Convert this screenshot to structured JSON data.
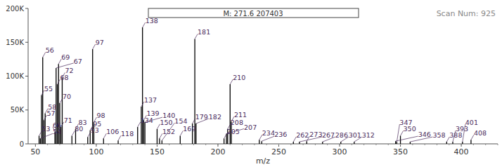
{
  "chart_data": {
    "type": "bar",
    "x_label": "m/z",
    "annotations": [
      "M: 271.6 207403",
      "Scan Num: 925"
    ],
    "x": [
      53,
      54,
      55,
      56,
      57,
      58,
      66,
      67,
      68,
      69,
      70,
      71,
      72,
      80,
      83,
      93,
      95,
      97,
      98,
      106,
      118,
      134,
      137,
      138,
      139,
      140,
      150,
      152,
      154,
      169,
      179,
      181,
      182,
      205,
      207,
      208,
      210,
      211,
      234,
      236,
      262,
      267,
      273,
      286,
      301,
      312,
      346,
      347,
      350,
      358,
      388,
      393,
      401,
      408
    ],
    "values": [
      12000,
      8000,
      72000,
      128000,
      35000,
      45000,
      18000,
      112000,
      88000,
      118000,
      60000,
      25000,
      98000,
      12000,
      22000,
      10000,
      20000,
      140000,
      32000,
      8000,
      5000,
      25000,
      55000,
      172000,
      35000,
      32000,
      22000,
      8000,
      5000,
      12000,
      30000,
      155000,
      30000,
      8000,
      15000,
      22000,
      88000,
      33000,
      6000,
      4000,
      3000,
      3000,
      4000,
      3000,
      3000,
      3000,
      4000,
      3000,
      12000,
      3000,
      3000,
      3000,
      3000,
      6000
    ],
    "color": "#000000",
    "xlim": [
      44,
      430
    ],
    "xticks": [
      50,
      100,
      150,
      200,
      250,
      300,
      350,
      400
    ],
    "ylim": [
      0,
      200000
    ],
    "yticks": [
      0,
      {
        "value": 50000,
        "label": "50K"
      },
      {
        "value": 100000,
        "label": "100K"
      },
      {
        "value": 150000,
        "label": "150K"
      },
      {
        "value": 200000,
        "label": "200K"
      }
    ],
    "grid": false
  }
}
